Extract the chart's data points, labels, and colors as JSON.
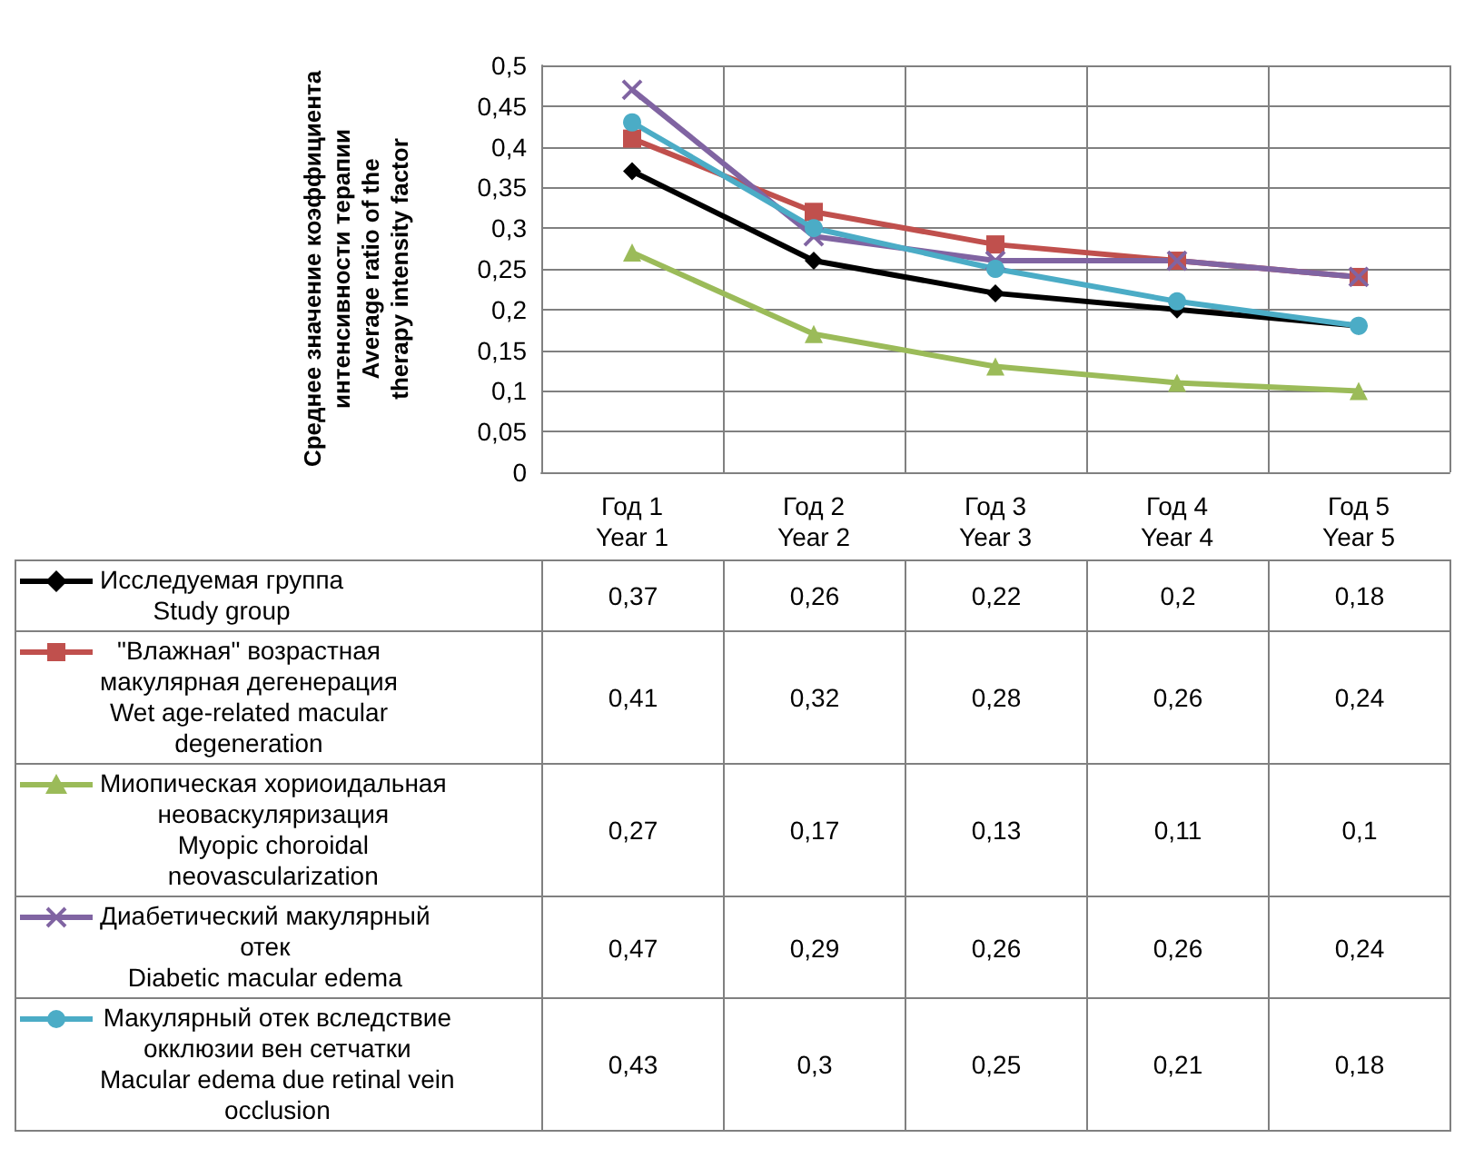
{
  "chart_data": {
    "type": "line",
    "ylabel": "Среднее значение коэффициента\nинтенсивности терапии\nAverage ratio of the\ntherapy intensity factor",
    "categories": [
      "Год 1\nYear 1",
      "Год 2\nYear 2",
      "Год 3\nYear 3",
      "Год 4\nYear 4",
      "Год 5\nYear 5"
    ],
    "series": [
      {
        "name": "Исследуемая группа\nStudy group",
        "color": "#000000",
        "marker": "diamond",
        "values": [
          0.37,
          0.26,
          0.22,
          0.2,
          0.18
        ],
        "value_labels": [
          "0,37",
          "0,26",
          "0,22",
          "0,2",
          "0,18"
        ]
      },
      {
        "name": "\"Влажная\" возрастная\nмакулярная дегенерация\nWet age-related macular\ndegeneration",
        "color": "#c0504d",
        "marker": "square",
        "values": [
          0.41,
          0.32,
          0.28,
          0.26,
          0.24
        ],
        "value_labels": [
          "0,41",
          "0,32",
          "0,28",
          "0,26",
          "0,24"
        ]
      },
      {
        "name": "Миопическая хориоидальная\nнеоваскуляризация\nMyopic choroidal\nneovascularization",
        "color": "#9bbb59",
        "marker": "triangle",
        "values": [
          0.27,
          0.17,
          0.13,
          0.11,
          0.1
        ],
        "value_labels": [
          "0,27",
          "0,17",
          "0,13",
          "0,11",
          "0,1"
        ]
      },
      {
        "name": "Диабетический макулярный\nотек\nDiabetic macular edema",
        "color": "#8064a2",
        "marker": "cross",
        "values": [
          0.47,
          0.29,
          0.26,
          0.26,
          0.24
        ],
        "value_labels": [
          "0,47",
          "0,29",
          "0,26",
          "0,26",
          "0,24"
        ]
      },
      {
        "name": "Макулярный отек вследствие\nокклюзии вен сетчатки\nMacular edema due retinal vein\nocclusion",
        "color": "#4bacc6",
        "marker": "circle",
        "values": [
          0.43,
          0.3,
          0.25,
          0.21,
          0.18
        ],
        "value_labels": [
          "0,43",
          "0,3",
          "0,25",
          "0,21",
          "0,18"
        ]
      }
    ],
    "ylim": [
      0,
      0.5
    ],
    "yticks": [
      {
        "value": 0,
        "label": "0"
      },
      {
        "value": 0.05,
        "label": "0,05"
      },
      {
        "value": 0.1,
        "label": "0,1"
      },
      {
        "value": 0.15,
        "label": "0,15"
      },
      {
        "value": 0.2,
        "label": "0,2"
      },
      {
        "value": 0.25,
        "label": "0,25"
      },
      {
        "value": 0.3,
        "label": "0,3"
      },
      {
        "value": 0.35,
        "label": "0,35"
      },
      {
        "value": 0.4,
        "label": "0,4"
      },
      {
        "value": 0.45,
        "label": "0,45"
      },
      {
        "value": 0.5,
        "label": "0,5"
      }
    ],
    "grid": true,
    "legend": "bottom",
    "line_style": "solid"
  }
}
